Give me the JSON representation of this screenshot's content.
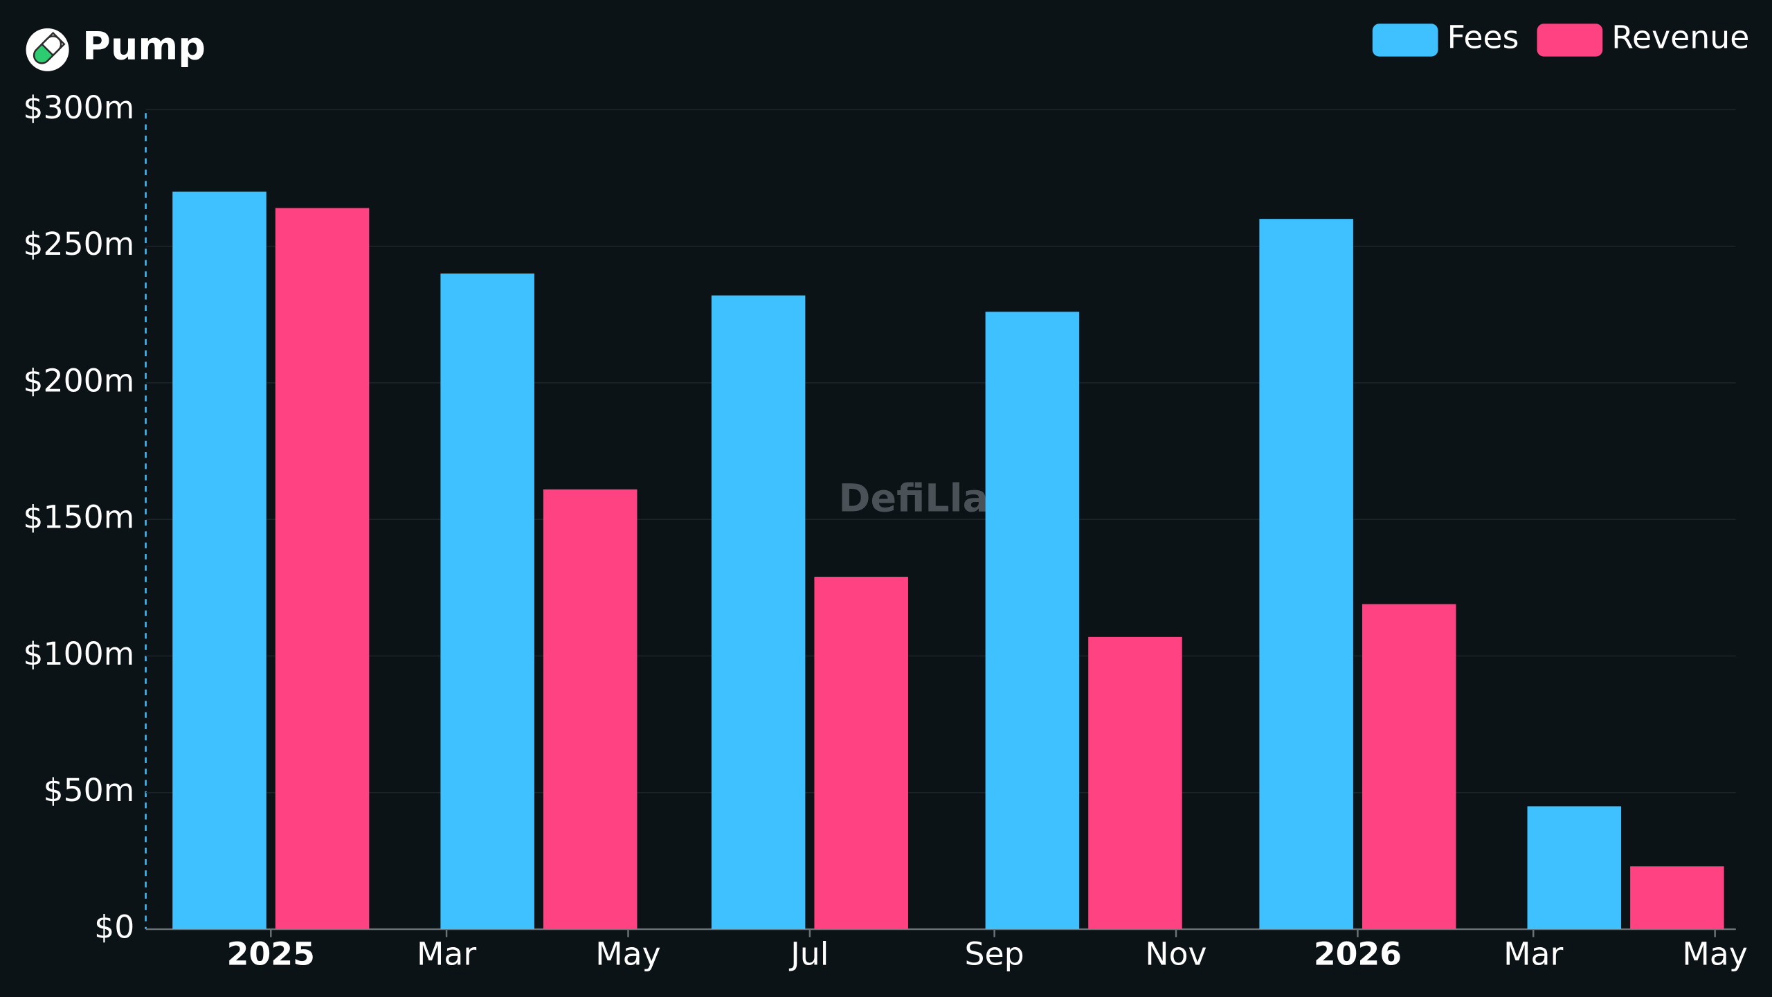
{
  "chart_data": {
    "type": "bar",
    "title": "Pump",
    "watermark": "DefiLlama",
    "x": [
      "2025-01",
      "2025-04",
      "2025-07",
      "2025-10",
      "2026-01",
      "2026-04"
    ],
    "series": [
      {
        "name": "Fees",
        "color": "#3fc1ff",
        "values": [
          270,
          240,
          232,
          226,
          260,
          45
        ]
      },
      {
        "name": "Revenue",
        "color": "#ff4281",
        "values": [
          264,
          161,
          129,
          107,
          119,
          23
        ]
      }
    ],
    "ylim": [
      0,
      300
    ],
    "yticks": [
      {
        "value": 0,
        "label": "$0"
      },
      {
        "value": 50,
        "label": "$50m"
      },
      {
        "value": 100,
        "label": "$100m"
      },
      {
        "value": 150,
        "label": "$150m"
      },
      {
        "value": 200,
        "label": "$200m"
      },
      {
        "value": 250,
        "label": "$250m"
      },
      {
        "value": 300,
        "label": "$300m"
      }
    ],
    "xlim": [
      "2024-11-20",
      "2026-05-08"
    ],
    "xticks": [
      {
        "value": "2025-01",
        "label": "2025"
      },
      {
        "value": "2025-03",
        "label": "Mar"
      },
      {
        "value": "2025-05",
        "label": "May"
      },
      {
        "value": "2025-07",
        "label": "Jul"
      },
      {
        "value": "2025-09",
        "label": "Sep"
      },
      {
        "value": "2025-11",
        "label": "Nov"
      },
      {
        "value": "2026-01",
        "label": "2026"
      },
      {
        "value": "2026-03",
        "label": "Mar"
      },
      {
        "value": "2026-05",
        "label": "May"
      }
    ],
    "grid": true,
    "legend": "top-right"
  }
}
